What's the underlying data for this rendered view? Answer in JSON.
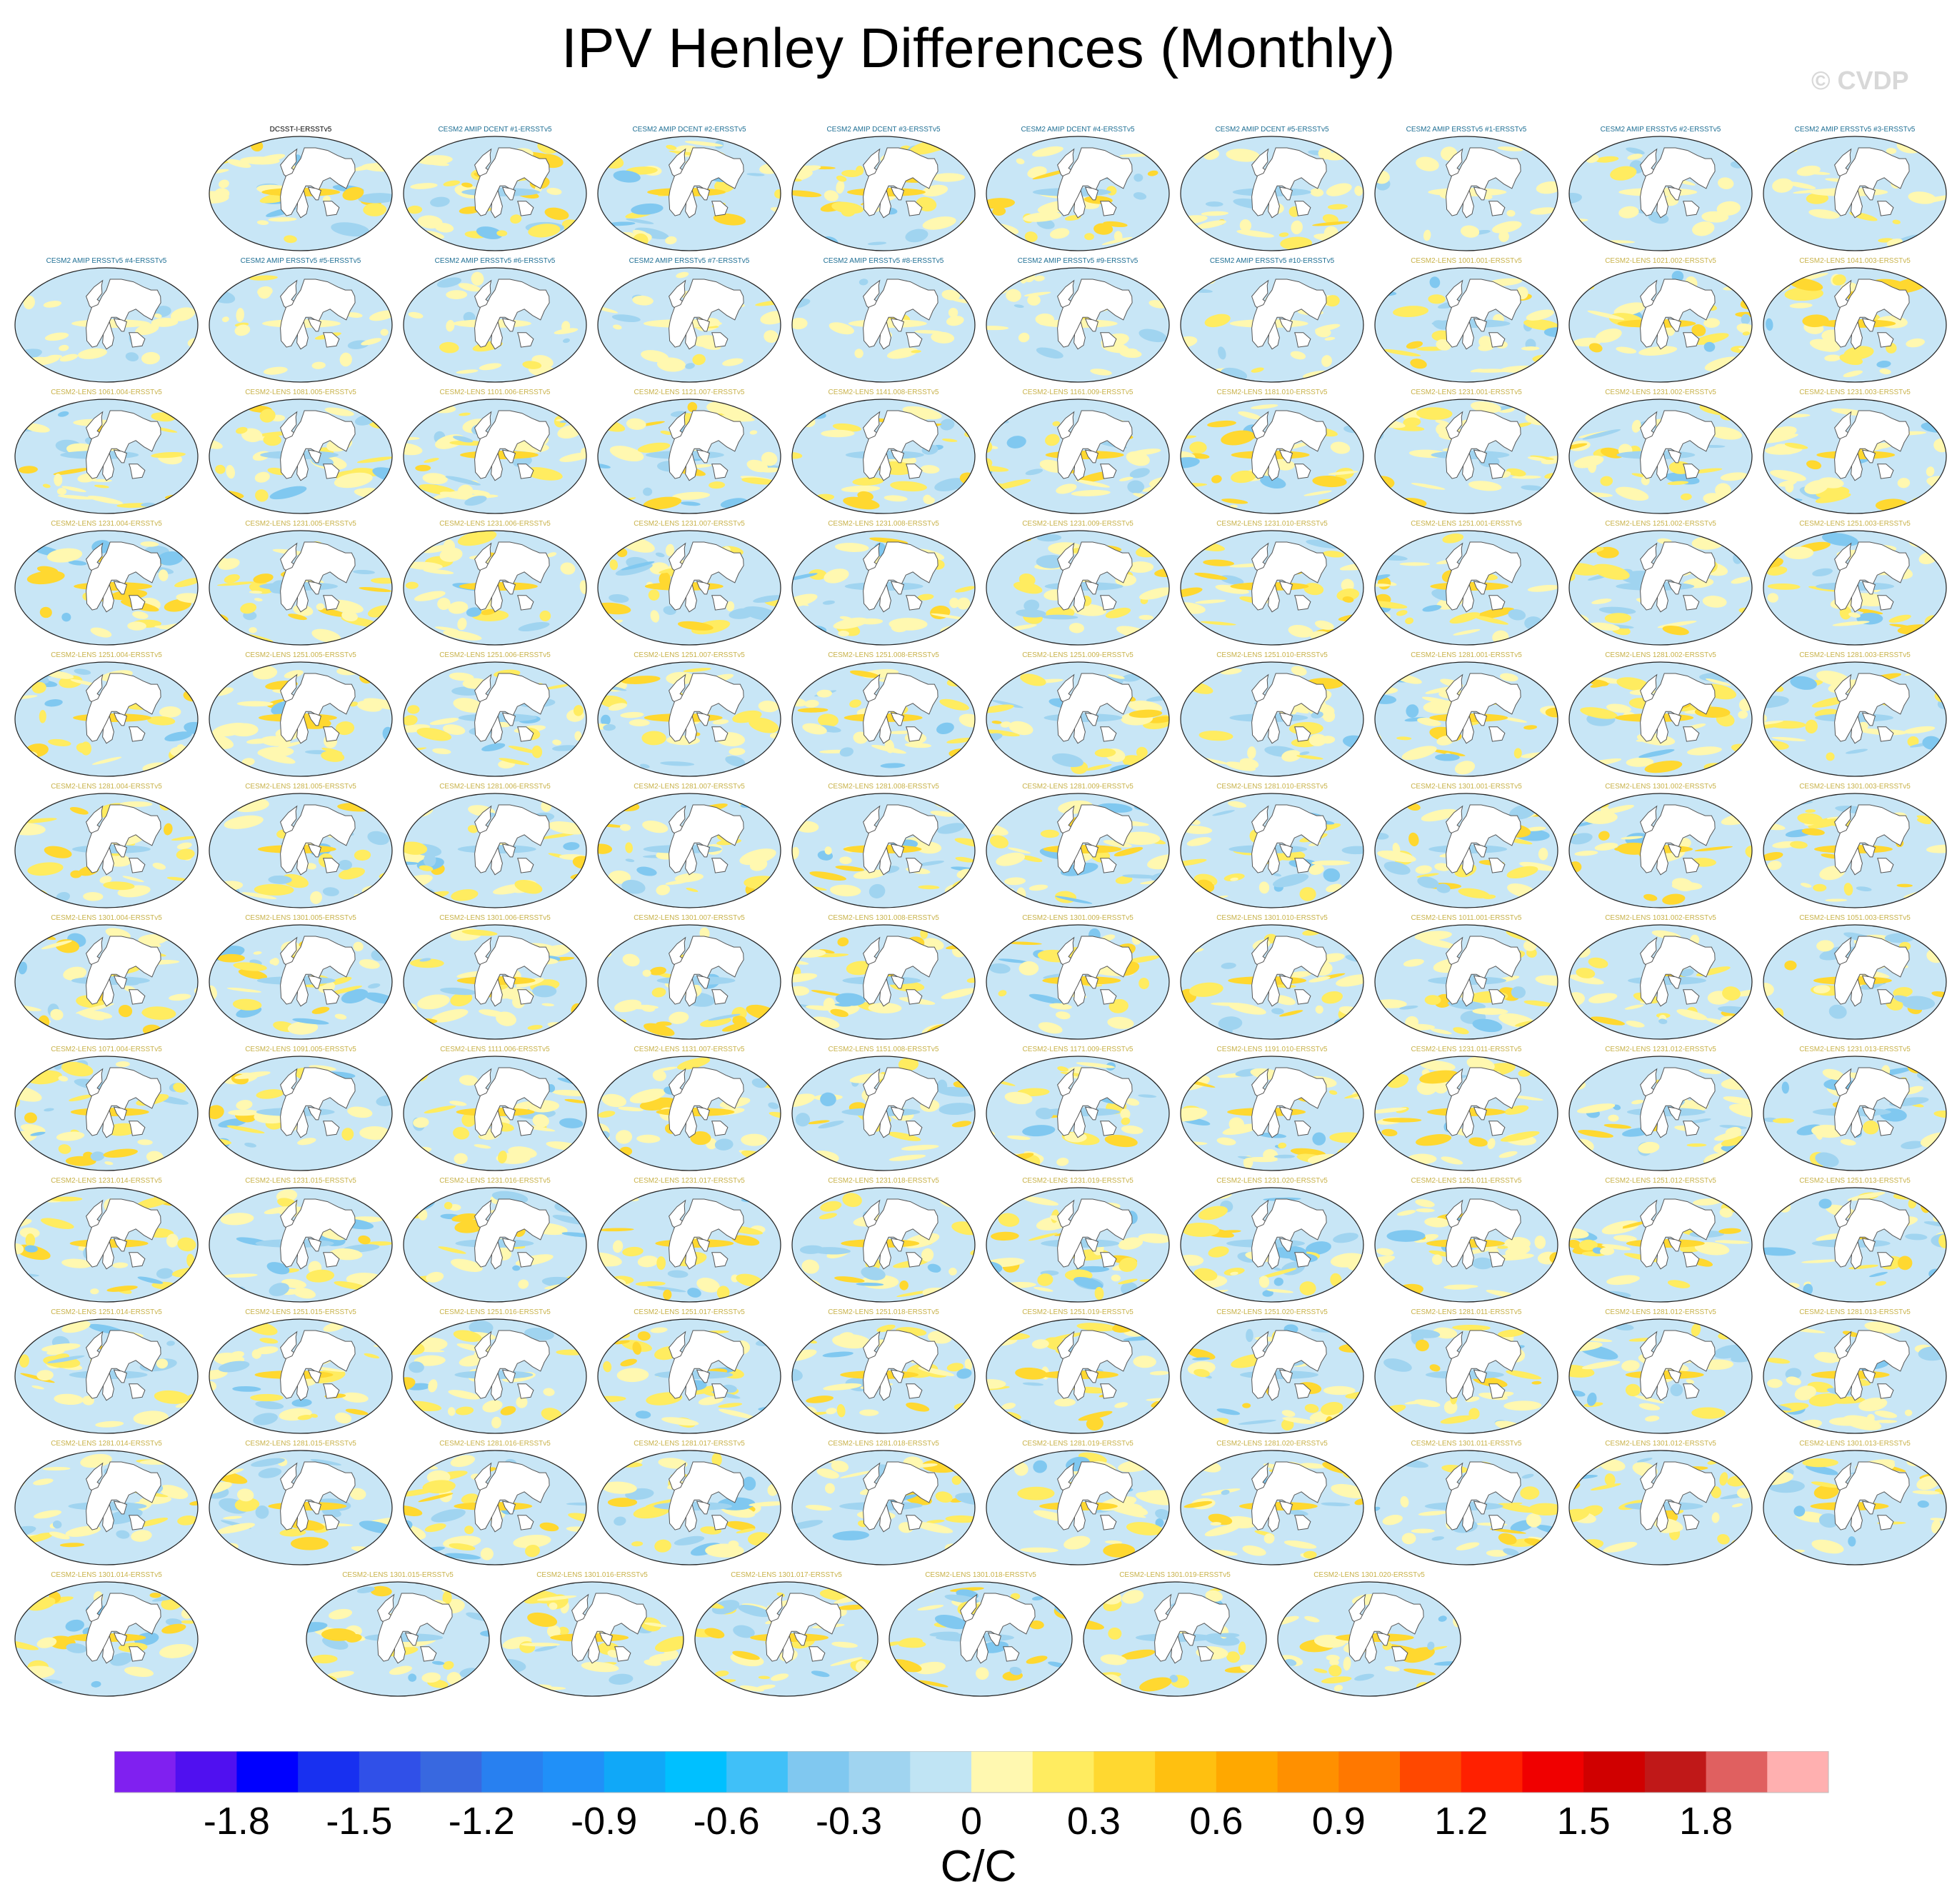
{
  "title": "IPV Henley Differences (Monthly)",
  "watermark": "© CVDP",
  "colors": {
    "reference_title": "#000000",
    "amip_title": "#1f6f94",
    "lens_title": "#c8b24a",
    "ocean_base": "#c8e6f6",
    "land": "#ffffff",
    "coast": "#555555"
  },
  "chart_data": {
    "type": "map-panel-grid",
    "title": "IPV Henley Differences (Monthly)",
    "projection": "Robinson-like global",
    "units": "C/C",
    "colorbar": {
      "ticks": [
        "-1.8",
        "-1.5",
        "-1.2",
        "-0.9",
        "-0.6",
        "-0.3",
        "0",
        "0.3",
        "0.6",
        "0.9",
        "1.2",
        "1.5",
        "1.8"
      ],
      "tick_values": [
        -1.8,
        -1.5,
        -1.2,
        -0.9,
        -0.6,
        -0.3,
        0,
        0.3,
        0.6,
        0.9,
        1.2,
        1.5,
        1.8
      ],
      "range": [
        -2.1,
        2.1
      ],
      "step": 0.15,
      "colors": [
        "#8020f0",
        "#5010f0",
        "#0000ff",
        "#1830f0",
        "#3050e8",
        "#3868e0",
        "#2880f0",
        "#2090f8",
        "#10a8f8",
        "#00c0ff",
        "#40c0f8",
        "#80c8f0",
        "#a0d4f0",
        "#c0e4f4",
        "#fff8b0",
        "#ffec60",
        "#ffd830",
        "#ffc010",
        "#ffa800",
        "#ff9000",
        "#ff7800",
        "#ff4800",
        "#ff2000",
        "#f00000",
        "#d00000",
        "#c01818",
        "#e06060",
        "#ffb0b0"
      ]
    },
    "panels": [
      {
        "label": "DCSST-I-ERSSTv5",
        "kind": "ref"
      },
      {
        "label": "CESM2 AMIP DCENT #1-ERSSTv5",
        "kind": "dcent"
      },
      {
        "label": "CESM2 AMIP DCENT #2-ERSSTv5",
        "kind": "dcent"
      },
      {
        "label": "CESM2 AMIP DCENT #3-ERSSTv5",
        "kind": "dcent"
      },
      {
        "label": "CESM2 AMIP DCENT #4-ERSSTv5",
        "kind": "dcent"
      },
      {
        "label": "CESM2 AMIP DCENT #5-ERSSTv5",
        "kind": "dcent"
      },
      {
        "label": "CESM2 AMIP ERSSTv5 #1-ERSSTv5",
        "kind": "amip"
      },
      {
        "label": "CESM2 AMIP ERSSTv5 #2-ERSSTv5",
        "kind": "amip"
      },
      {
        "label": "CESM2 AMIP ERSSTv5 #3-ERSSTv5",
        "kind": "amip"
      },
      {
        "label": "CESM2 AMIP ERSSTv5 #4-ERSSTv5",
        "kind": "amip"
      },
      {
        "label": "CESM2 AMIP ERSSTv5 #5-ERSSTv5",
        "kind": "amip"
      },
      {
        "label": "CESM2 AMIP ERSSTv5 #6-ERSSTv5",
        "kind": "amip"
      },
      {
        "label": "CESM2 AMIP ERSSTv5 #7-ERSSTv5",
        "kind": "amip"
      },
      {
        "label": "CESM2 AMIP ERSSTv5 #8-ERSSTv5",
        "kind": "amip"
      },
      {
        "label": "CESM2 AMIP ERSSTv5 #9-ERSSTv5",
        "kind": "amip"
      },
      {
        "label": "CESM2 AMIP ERSSTv5 #10-ERSSTv5",
        "kind": "amip"
      },
      {
        "label": "CESM2-LENS 1001.001-ERSSTv5",
        "kind": "lens"
      },
      {
        "label": "CESM2-LENS 1021.002-ERSSTv5",
        "kind": "lens"
      },
      {
        "label": "CESM2-LENS 1041.003-ERSSTv5",
        "kind": "lens"
      },
      {
        "label": "CESM2-LENS 1061.004-ERSSTv5",
        "kind": "lens"
      },
      {
        "label": "CESM2-LENS 1081.005-ERSSTv5",
        "kind": "lens"
      },
      {
        "label": "CESM2-LENS 1101.006-ERSSTv5",
        "kind": "lens"
      },
      {
        "label": "CESM2-LENS 1121.007-ERSSTv5",
        "kind": "lens"
      },
      {
        "label": "CESM2-LENS 1141.008-ERSSTv5",
        "kind": "lens"
      },
      {
        "label": "CESM2-LENS 1161.009-ERSSTv5",
        "kind": "lens"
      },
      {
        "label": "CESM2-LENS 1181.010-ERSSTv5",
        "kind": "lens"
      },
      {
        "label": "CESM2-LENS 1231.001-ERSSTv5",
        "kind": "lens"
      },
      {
        "label": "CESM2-LENS 1231.002-ERSSTv5",
        "kind": "lens"
      },
      {
        "label": "CESM2-LENS 1231.003-ERSSTv5",
        "kind": "lens"
      },
      {
        "label": "CESM2-LENS 1231.004-ERSSTv5",
        "kind": "lens"
      },
      {
        "label": "CESM2-LENS 1231.005-ERSSTv5",
        "kind": "lens"
      },
      {
        "label": "CESM2-LENS 1231.006-ERSSTv5",
        "kind": "lens"
      },
      {
        "label": "CESM2-LENS 1231.007-ERSSTv5",
        "kind": "lens"
      },
      {
        "label": "CESM2-LENS 1231.008-ERSSTv5",
        "kind": "lens"
      },
      {
        "label": "CESM2-LENS 1231.009-ERSSTv5",
        "kind": "lens"
      },
      {
        "label": "CESM2-LENS 1231.010-ERSSTv5",
        "kind": "lens"
      },
      {
        "label": "CESM2-LENS 1251.001-ERSSTv5",
        "kind": "lens"
      },
      {
        "label": "CESM2-LENS 1251.002-ERSSTv5",
        "kind": "lens"
      },
      {
        "label": "CESM2-LENS 1251.003-ERSSTv5",
        "kind": "lens"
      },
      {
        "label": "CESM2-LENS 1251.004-ERSSTv5",
        "kind": "lens"
      },
      {
        "label": "CESM2-LENS 1251.005-ERSSTv5",
        "kind": "lens"
      },
      {
        "label": "CESM2-LENS 1251.006-ERSSTv5",
        "kind": "lens"
      },
      {
        "label": "CESM2-LENS 1251.007-ERSSTv5",
        "kind": "lens"
      },
      {
        "label": "CESM2-LENS 1251.008-ERSSTv5",
        "kind": "lens"
      },
      {
        "label": "CESM2-LENS 1251.009-ERSSTv5",
        "kind": "lens"
      },
      {
        "label": "CESM2-LENS 1251.010-ERSSTv5",
        "kind": "lens"
      },
      {
        "label": "CESM2-LENS 1281.001-ERSSTv5",
        "kind": "lens"
      },
      {
        "label": "CESM2-LENS 1281.002-ERSSTv5",
        "kind": "lens"
      },
      {
        "label": "CESM2-LENS 1281.003-ERSSTv5",
        "kind": "lens"
      },
      {
        "label": "CESM2-LENS 1281.004-ERSSTv5",
        "kind": "lens"
      },
      {
        "label": "CESM2-LENS 1281.005-ERSSTv5",
        "kind": "lens"
      },
      {
        "label": "CESM2-LENS 1281.006-ERSSTv5",
        "kind": "lens"
      },
      {
        "label": "CESM2-LENS 1281.007-ERSSTv5",
        "kind": "lens"
      },
      {
        "label": "CESM2-LENS 1281.008-ERSSTv5",
        "kind": "lens"
      },
      {
        "label": "CESM2-LENS 1281.009-ERSSTv5",
        "kind": "lens"
      },
      {
        "label": "CESM2-LENS 1281.010-ERSSTv5",
        "kind": "lens"
      },
      {
        "label": "CESM2-LENS 1301.001-ERSSTv5",
        "kind": "lens"
      },
      {
        "label": "CESM2-LENS 1301.002-ERSSTv5",
        "kind": "lens"
      },
      {
        "label": "CESM2-LENS 1301.003-ERSSTv5",
        "kind": "lens"
      },
      {
        "label": "CESM2-LENS 1301.004-ERSSTv5",
        "kind": "lens"
      },
      {
        "label": "CESM2-LENS 1301.005-ERSSTv5",
        "kind": "lens"
      },
      {
        "label": "CESM2-LENS 1301.006-ERSSTv5",
        "kind": "lens"
      },
      {
        "label": "CESM2-LENS 1301.007-ERSSTv5",
        "kind": "lens"
      },
      {
        "label": "CESM2-LENS 1301.008-ERSSTv5",
        "kind": "lens"
      },
      {
        "label": "CESM2-LENS 1301.009-ERSSTv5",
        "kind": "lens"
      },
      {
        "label": "CESM2-LENS 1301.010-ERSSTv5",
        "kind": "lens"
      },
      {
        "label": "CESM2-LENS 1011.001-ERSSTv5",
        "kind": "lens"
      },
      {
        "label": "CESM2-LENS 1031.002-ERSSTv5",
        "kind": "lens"
      },
      {
        "label": "CESM2-LENS 1051.003-ERSSTv5",
        "kind": "lens"
      },
      {
        "label": "CESM2-LENS 1071.004-ERSSTv5",
        "kind": "lens"
      },
      {
        "label": "CESM2-LENS 1091.005-ERSSTv5",
        "kind": "lens"
      },
      {
        "label": "CESM2-LENS 1111.006-ERSSTv5",
        "kind": "lens"
      },
      {
        "label": "CESM2-LENS 1131.007-ERSSTv5",
        "kind": "lens"
      },
      {
        "label": "CESM2-LENS 1151.008-ERSSTv5",
        "kind": "lens"
      },
      {
        "label": "CESM2-LENS 1171.009-ERSSTv5",
        "kind": "lens"
      },
      {
        "label": "CESM2-LENS 1191.010-ERSSTv5",
        "kind": "lens"
      },
      {
        "label": "CESM2-LENS 1231.011-ERSSTv5",
        "kind": "lens"
      },
      {
        "label": "CESM2-LENS 1231.012-ERSSTv5",
        "kind": "lens"
      },
      {
        "label": "CESM2-LENS 1231.013-ERSSTv5",
        "kind": "lens"
      },
      {
        "label": "CESM2-LENS 1231.014-ERSSTv5",
        "kind": "lens"
      },
      {
        "label": "CESM2-LENS 1231.015-ERSSTv5",
        "kind": "lens"
      },
      {
        "label": "CESM2-LENS 1231.016-ERSSTv5",
        "kind": "lens"
      },
      {
        "label": "CESM2-LENS 1231.017-ERSSTv5",
        "kind": "lens"
      },
      {
        "label": "CESM2-LENS 1231.018-ERSSTv5",
        "kind": "lens"
      },
      {
        "label": "CESM2-LENS 1231.019-ERSSTv5",
        "kind": "lens"
      },
      {
        "label": "CESM2-LENS 1231.020-ERSSTv5",
        "kind": "lens"
      },
      {
        "label": "CESM2-LENS 1251.011-ERSSTv5",
        "kind": "lens"
      },
      {
        "label": "CESM2-LENS 1251.012-ERSSTv5",
        "kind": "lens"
      },
      {
        "label": "CESM2-LENS 1251.013-ERSSTv5",
        "kind": "lens"
      },
      {
        "label": "CESM2-LENS 1251.014-ERSSTv5",
        "kind": "lens"
      },
      {
        "label": "CESM2-LENS 1251.015-ERSSTv5",
        "kind": "lens"
      },
      {
        "label": "CESM2-LENS 1251.016-ERSSTv5",
        "kind": "lens"
      },
      {
        "label": "CESM2-LENS 1251.017-ERSSTv5",
        "kind": "lens"
      },
      {
        "label": "CESM2-LENS 1251.018-ERSSTv5",
        "kind": "lens"
      },
      {
        "label": "CESM2-LENS 1251.019-ERSSTv5",
        "kind": "lens"
      },
      {
        "label": "CESM2-LENS 1251.020-ERSSTv5",
        "kind": "lens"
      },
      {
        "label": "CESM2-LENS 1281.011-ERSSTv5",
        "kind": "lens"
      },
      {
        "label": "CESM2-LENS 1281.012-ERSSTv5",
        "kind": "lens"
      },
      {
        "label": "CESM2-LENS 1281.013-ERSSTv5",
        "kind": "lens"
      },
      {
        "label": "CESM2-LENS 1281.014-ERSSTv5",
        "kind": "lens"
      },
      {
        "label": "CESM2-LENS 1281.015-ERSSTv5",
        "kind": "lens"
      },
      {
        "label": "CESM2-LENS 1281.016-ERSSTv5",
        "kind": "lens"
      },
      {
        "label": "CESM2-LENS 1281.017-ERSSTv5",
        "kind": "lens"
      },
      {
        "label": "CESM2-LENS 1281.018-ERSSTv5",
        "kind": "lens"
      },
      {
        "label": "CESM2-LENS 1281.019-ERSSTv5",
        "kind": "lens"
      },
      {
        "label": "CESM2-LENS 1281.020-ERSSTv5",
        "kind": "lens"
      },
      {
        "label": "CESM2-LENS 1301.011-ERSSTv5",
        "kind": "lens"
      },
      {
        "label": "CESM2-LENS 1301.012-ERSSTv5",
        "kind": "lens"
      },
      {
        "label": "CESM2-LENS 1301.013-ERSSTv5",
        "kind": "lens"
      },
      {
        "label": "CESM2-LENS 1301.014-ERSSTv5",
        "kind": "lens"
      },
      {
        "label": "CESM2-LENS 1301.015-ERSSTv5",
        "kind": "lens"
      },
      {
        "label": "CESM2-LENS 1301.016-ERSSTv5",
        "kind": "lens"
      },
      {
        "label": "CESM2-LENS 1301.017-ERSSTv5",
        "kind": "lens"
      },
      {
        "label": "CESM2-LENS 1301.018-ERSSTv5",
        "kind": "lens"
      },
      {
        "label": "CESM2-LENS 1301.019-ERSSTv5",
        "kind": "lens"
      },
      {
        "label": "CESM2-LENS 1301.020-ERSSTv5",
        "kind": "lens"
      }
    ]
  }
}
